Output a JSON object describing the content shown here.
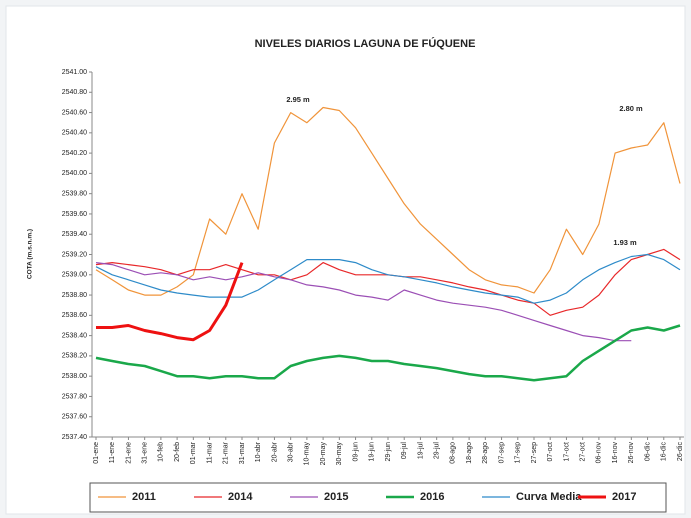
{
  "chart_data": {
    "type": "line",
    "title": "NIVELES DIARIOS LAGUNA DE FÚQUENE",
    "y_label": "COTA (m.s.n.m.)",
    "annotations": [
      "2.95 m",
      "2.80 m",
      "1.93 m"
    ],
    "categories": [
      "01-ene",
      "11-ene",
      "21-ene",
      "31-ene",
      "10-feb",
      "20-feb",
      "01-mar",
      "11-mar",
      "21-mar",
      "31-mar",
      "10-abr",
      "20-abr",
      "30-abr",
      "10-may",
      "20-may",
      "30-may",
      "09-jun",
      "19-jun",
      "29-jun",
      "09-jul",
      "19-jul",
      "29-jul",
      "08-ago",
      "18-ago",
      "28-ago",
      "07-sep",
      "17-sep",
      "27-sep",
      "07-oct",
      "17-oct",
      "27-oct",
      "06-nov",
      "16-nov",
      "26-nov",
      "06-dic",
      "16-dic",
      "26-dic"
    ],
    "ylim": [
      2537.4,
      2541.0
    ],
    "yticks": [
      {
        "value": 2537.4,
        "label": "2537.40"
      },
      {
        "value": 2537.6,
        "label": "2537.60"
      },
      {
        "value": 2537.8,
        "label": "2537.80"
      },
      {
        "value": 2538.0,
        "label": "2538.00"
      },
      {
        "value": 2538.2,
        "label": "2538.20"
      },
      {
        "value": 2538.4,
        "label": "2538.40"
      },
      {
        "value": 2538.6,
        "label": "2538.60"
      },
      {
        "value": 2538.8,
        "label": "2538.80"
      },
      {
        "value": 2539.0,
        "label": "2539.00"
      },
      {
        "value": 2539.2,
        "label": "2539.20"
      },
      {
        "value": 2539.4,
        "label": "2539.40"
      },
      {
        "value": 2539.6,
        "label": "2539.60"
      },
      {
        "value": 2539.8,
        "label": "2539.80"
      },
      {
        "value": 2540.0,
        "label": "2540.00"
      },
      {
        "value": 2540.2,
        "label": "2540.20"
      },
      {
        "value": 2540.4,
        "label": "2540.40"
      },
      {
        "value": 2540.6,
        "label": "2540.60"
      },
      {
        "value": 2540.8,
        "label": "2540.80"
      },
      {
        "value": 2541.0,
        "label": "2541.00"
      }
    ],
    "grid": false,
    "legend": "bottom",
    "series": [
      {
        "name": "2011",
        "color": "#f0943a",
        "line_width": 1.2,
        "values": [
          2539.05,
          2538.95,
          2538.85,
          2538.8,
          2538.8,
          2538.88,
          2539.0,
          2539.55,
          2539.4,
          2539.8,
          2539.45,
          2540.3,
          2540.6,
          2540.5,
          2540.65,
          2540.62,
          2540.45,
          2540.2,
          2539.95,
          2539.7,
          2539.5,
          2539.35,
          2539.2,
          2539.05,
          2538.95,
          2538.9,
          2538.88,
          2538.82,
          2539.05,
          2539.45,
          2539.2,
          2539.5,
          2540.2,
          2540.25,
          2540.28,
          2540.5,
          2539.9
        ]
      },
      {
        "name": "2014",
        "color": "#e8282a",
        "line_width": 1.2,
        "values": [
          2539.1,
          2539.12,
          2539.1,
          2539.08,
          2539.05,
          2539.0,
          2539.05,
          2539.05,
          2539.1,
          2539.05,
          2539.0,
          2539.0,
          2538.95,
          2539.0,
          2539.12,
          2539.05,
          2539.0,
          2539.0,
          2539.0,
          2538.98,
          2538.98,
          2538.95,
          2538.92,
          2538.88,
          2538.85,
          2538.8,
          2538.75,
          2538.72,
          2538.6,
          2538.65,
          2538.68,
          2538.8,
          2539.0,
          2539.15,
          2539.2,
          2539.25,
          2539.15
        ]
      },
      {
        "name": "2015",
        "color": "#9b4fb5",
        "line_width": 1.2,
        "values": [
          2539.12,
          2539.1,
          2539.05,
          2539.0,
          2539.02,
          2539.0,
          2538.95,
          2538.98,
          2538.95,
          2538.98,
          2539.02,
          2538.98,
          2538.95,
          2538.9,
          2538.88,
          2538.85,
          2538.8,
          2538.78,
          2538.75,
          2538.85,
          2538.8,
          2538.75,
          2538.72,
          2538.7,
          2538.68,
          2538.65,
          2538.6,
          2538.55,
          2538.5,
          2538.45,
          2538.4,
          2538.38,
          2538.35,
          2538.35,
          null,
          null,
          null
        ]
      },
      {
        "name": "2016",
        "color": "#1aa84a",
        "line_width": 2.5,
        "values": [
          2538.18,
          2538.15,
          2538.12,
          2538.1,
          2538.05,
          2538.0,
          2538.0,
          2537.98,
          2538.0,
          2538.0,
          2537.98,
          2537.98,
          2538.1,
          2538.15,
          2538.18,
          2538.2,
          2538.18,
          2538.15,
          2538.15,
          2538.12,
          2538.1,
          2538.08,
          2538.05,
          2538.02,
          2538.0,
          2538.0,
          2537.98,
          2537.96,
          2537.98,
          2538.0,
          2538.15,
          2538.25,
          2538.35,
          2538.45,
          2538.48,
          2538.45,
          2538.5
        ]
      },
      {
        "name": "Curva Media",
        "color": "#2e8bc9",
        "line_width": 1.2,
        "values": [
          2539.08,
          2539.0,
          2538.95,
          2538.9,
          2538.85,
          2538.82,
          2538.8,
          2538.78,
          2538.78,
          2538.78,
          2538.85,
          2538.95,
          2539.05,
          2539.15,
          2539.15,
          2539.15,
          2539.12,
          2539.05,
          2539.0,
          2538.98,
          2538.95,
          2538.92,
          2538.88,
          2538.85,
          2538.82,
          2538.8,
          2538.78,
          2538.72,
          2538.75,
          2538.82,
          2538.95,
          2539.05,
          2539.12,
          2539.18,
          2539.2,
          2539.15,
          2539.05
        ]
      },
      {
        "name": "2017",
        "color": "#ee1111",
        "line_width": 3,
        "values": [
          2538.48,
          2538.48,
          2538.5,
          2538.45,
          2538.42,
          2538.38,
          2538.36,
          2538.45,
          2538.7,
          2539.12,
          null,
          null,
          null,
          null,
          null,
          null,
          null,
          null,
          null,
          null,
          null,
          null,
          null,
          null,
          null,
          null,
          null,
          null,
          null,
          null,
          null,
          null,
          null,
          null,
          null,
          null,
          null
        ]
      }
    ]
  }
}
